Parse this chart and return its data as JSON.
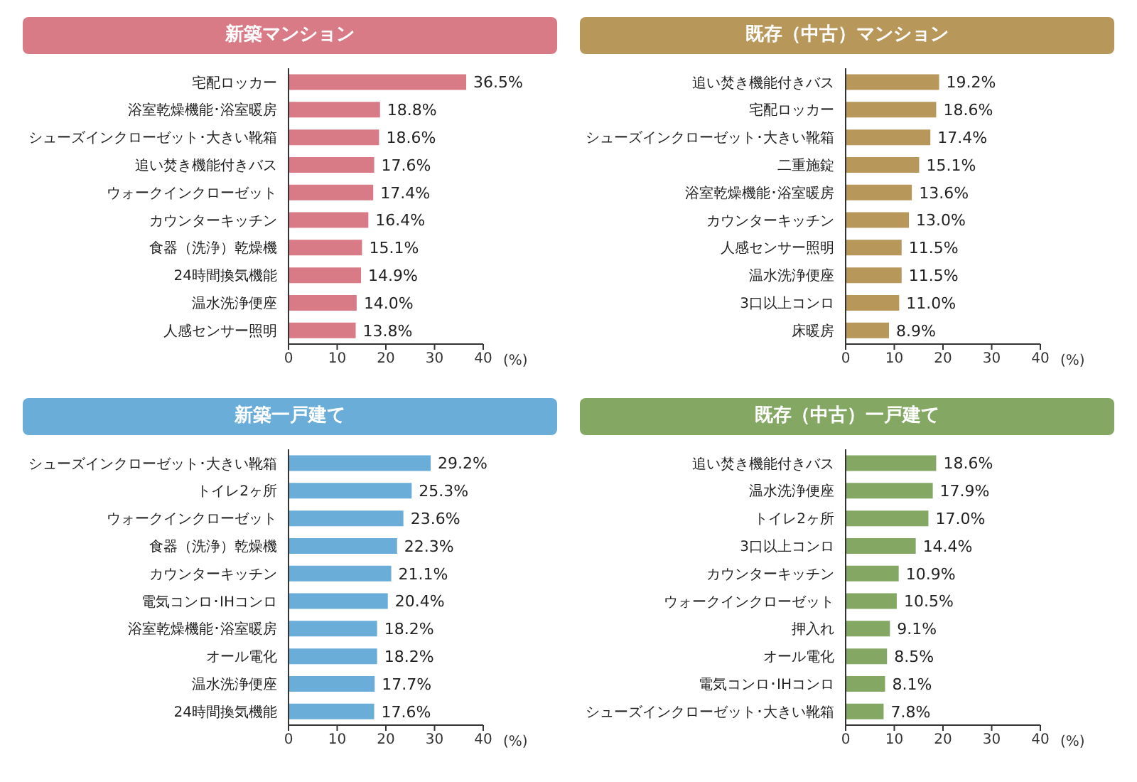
{
  "chart_data": [
    {
      "type": "bar",
      "orientation": "horizontal",
      "title": "新築マンション",
      "xlabel": "(%)",
      "color": "#d97b87",
      "xlim": [
        0,
        40
      ],
      "xticks": [
        0,
        10,
        20,
        30,
        40
      ],
      "categories": [
        "宅配ロッカー",
        "浴室乾燥機能･浴室暖房",
        "シューズインクローゼット･大きい靴箱",
        "追い焚き機能付きバス",
        "ウォークインクローゼット",
        "カウンターキッチン",
        "食器（洗浄）乾燥機",
        "24時間換気機能",
        "温水洗浄便座",
        "人感センサー照明"
      ],
      "values": [
        36.5,
        18.8,
        18.6,
        17.6,
        17.4,
        16.4,
        15.1,
        14.9,
        14.0,
        13.8
      ],
      "value_labels": [
        "36.5%",
        "18.8%",
        "18.6%",
        "17.6%",
        "17.4%",
        "16.4%",
        "15.1%",
        "14.9%",
        "14.0%",
        "13.8%"
      ]
    },
    {
      "type": "bar",
      "orientation": "horizontal",
      "title": "既存（中古）マンション",
      "xlabel": "(%)",
      "color": "#b8975a",
      "xlim": [
        0,
        40
      ],
      "xticks": [
        0,
        10,
        20,
        30,
        40
      ],
      "categories": [
        "追い焚き機能付きバス",
        "宅配ロッカー",
        "シューズインクローゼット･大きい靴箱",
        "二重施錠",
        "浴室乾燥機能･浴室暖房",
        "カウンターキッチン",
        "人感センサー照明",
        "温水洗浄便座",
        "3口以上コンロ",
        "床暖房"
      ],
      "values": [
        19.2,
        18.6,
        17.4,
        15.1,
        13.6,
        13.0,
        11.5,
        11.5,
        11.0,
        8.9
      ],
      "value_labels": [
        "19.2%",
        "18.6%",
        "17.4%",
        "15.1%",
        "13.6%",
        "13.0%",
        "11.5%",
        "11.5%",
        "11.0%",
        "8.9%"
      ]
    },
    {
      "type": "bar",
      "orientation": "horizontal",
      "title": "新築一戸建て",
      "xlabel": "(%)",
      "color": "#6aadd9",
      "xlim": [
        0,
        40
      ],
      "xticks": [
        0,
        10,
        20,
        30,
        40
      ],
      "categories": [
        "シューズインクローゼット･大きい靴箱",
        "トイレ2ヶ所",
        "ウォークインクローゼット",
        "食器（洗浄）乾燥機",
        "カウンターキッチン",
        "電気コンロ･IHコンロ",
        "浴室乾燥機能･浴室暖房",
        "オール電化",
        "温水洗浄便座",
        "24時間換気機能"
      ],
      "values": [
        29.2,
        25.3,
        23.6,
        22.3,
        21.1,
        20.4,
        18.2,
        18.2,
        17.7,
        17.6
      ],
      "value_labels": [
        "29.2%",
        "25.3%",
        "23.6%",
        "22.3%",
        "21.1%",
        "20.4%",
        "18.2%",
        "18.2%",
        "17.7%",
        "17.6%"
      ]
    },
    {
      "type": "bar",
      "orientation": "horizontal",
      "title": "既存（中古）一戸建て",
      "xlabel": "(%)",
      "color": "#84a863",
      "xlim": [
        0,
        40
      ],
      "xticks": [
        0,
        10,
        20,
        30,
        40
      ],
      "categories": [
        "追い焚き機能付きバス",
        "温水洗浄便座",
        "トイレ2ヶ所",
        "3口以上コンロ",
        "カウンターキッチン",
        "ウォークインクローゼット",
        "押入れ",
        "オール電化",
        "電気コンロ･IHコンロ",
        "シューズインクローゼット･大きい靴箱"
      ],
      "values": [
        18.6,
        17.9,
        17.0,
        14.4,
        10.9,
        10.5,
        9.1,
        8.5,
        8.1,
        7.8
      ],
      "value_labels": [
        "18.6%",
        "17.9%",
        "17.0%",
        "14.4%",
        "10.9%",
        "10.5%",
        "9.1%",
        "8.5%",
        "8.1%",
        "7.8%"
      ]
    }
  ]
}
